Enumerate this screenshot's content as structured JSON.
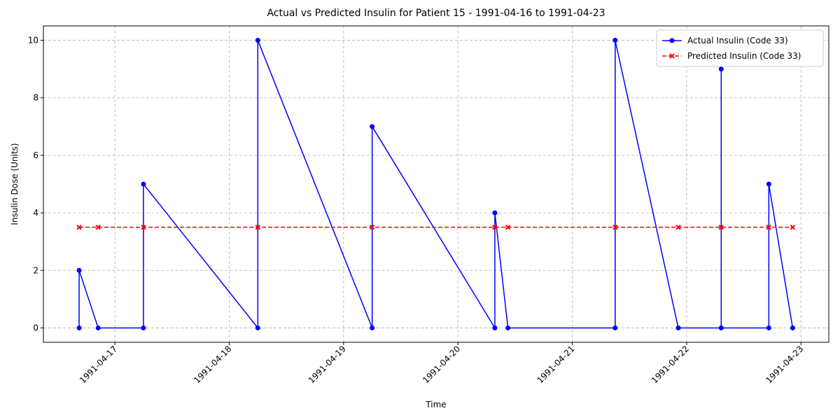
{
  "chart_data": {
    "type": "line",
    "title": "Actual vs Predicted Insulin for Patient 15 - 1991-04-16 to 1991-04-23",
    "x_label": "Time",
    "y_label": "Insulin Dose (Units)",
    "series": [
      {
        "name": "Actual Insulin (Code 33)",
        "color": "#0000ff",
        "marker": "circle",
        "dash": false,
        "x": [
          "1991-04-16T16:30",
          "1991-04-16T16:30",
          "1991-04-16T20:30",
          "1991-04-17T06:00",
          "1991-04-17T06:00",
          "1991-04-18T06:00",
          "1991-04-18T06:00",
          "1991-04-19T06:00",
          "1991-04-19T06:00",
          "1991-04-20T07:45",
          "1991-04-20T07:45",
          "1991-04-20T10:30",
          "1991-04-21T09:00",
          "1991-04-21T09:00",
          "1991-04-21T22:15",
          "1991-04-22T07:15",
          "1991-04-22T07:15",
          "1991-04-22T07:15",
          "1991-04-22T17:15",
          "1991-04-22T17:15",
          "1991-04-22T22:15"
        ],
        "values": [
          0,
          2,
          0,
          0,
          5,
          0,
          10,
          0,
          7,
          0,
          4,
          0,
          0,
          10,
          0,
          0,
          9,
          0,
          0,
          5,
          0
        ]
      },
      {
        "name": "Predicted Insulin (Code 33)",
        "color": "#ff0000",
        "marker": "x",
        "dash": true,
        "x": [
          "1991-04-16T16:30",
          "1991-04-16T20:30",
          "1991-04-17T06:00",
          "1991-04-18T06:00",
          "1991-04-19T06:00",
          "1991-04-20T07:45",
          "1991-04-20T10:30",
          "1991-04-21T09:00",
          "1991-04-21T22:15",
          "1991-04-22T07:15",
          "1991-04-22T17:15",
          "1991-04-22T22:15"
        ],
        "values": [
          3.5,
          3.5,
          3.5,
          3.5,
          3.5,
          3.5,
          3.5,
          3.5,
          3.5,
          3.5,
          3.5,
          3.5
        ]
      }
    ],
    "xlim": [
      "1991-04-16T09:00",
      "1991-04-23T05:50"
    ],
    "xticks": [
      "1991-04-17",
      "1991-04-18",
      "1991-04-19",
      "1991-04-20",
      "1991-04-21",
      "1991-04-22",
      "1991-04-23"
    ],
    "ylim": [
      -0.5,
      10.5
    ],
    "yticks": [
      0,
      2,
      4,
      6,
      8,
      10
    ],
    "grid": true,
    "legend": "upper right"
  }
}
